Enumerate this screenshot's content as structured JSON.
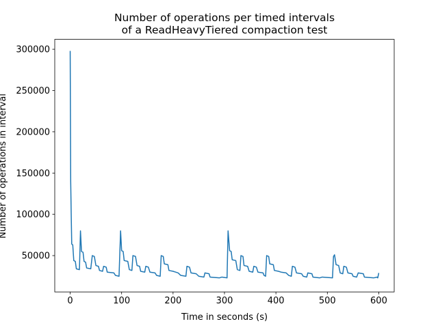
{
  "chart_data": {
    "type": "line",
    "title": [
      "Number of operations per timed intervals",
      "of a ReadHeavyTiered compaction test"
    ],
    "xlabel": "Time in seconds (s)",
    "ylabel": "Number of operations in interval",
    "x": [
      0,
      1,
      2,
      3,
      5,
      7,
      10,
      12,
      18,
      20,
      22,
      25,
      27,
      30,
      32,
      40,
      43,
      47,
      50,
      55,
      57,
      63,
      65,
      70,
      72,
      85,
      88,
      95,
      98,
      100,
      103,
      105,
      112,
      115,
      120,
      122,
      127,
      130,
      135,
      137,
      145,
      147,
      152,
      155,
      165,
      168,
      175,
      177,
      181,
      183,
      190,
      192,
      200,
      205,
      210,
      215,
      225,
      227,
      232,
      235,
      245,
      250,
      260,
      262,
      270,
      272,
      290,
      295,
      305,
      307,
      310,
      313,
      315,
      322,
      325,
      330,
      332,
      336,
      338,
      345,
      348,
      355,
      357,
      362,
      365,
      375,
      377,
      380,
      382,
      386,
      388,
      395,
      397,
      405,
      410,
      420,
      425,
      430,
      432,
      437,
      440,
      450,
      453,
      460,
      462,
      470,
      472,
      485,
      490,
      510,
      512,
      514,
      517,
      522,
      525,
      530,
      532,
      537,
      540,
      548,
      550,
      557,
      560,
      570,
      572,
      590,
      597,
      598,
      600
    ],
    "series": [
      {
        "name": "operations",
        "color": "#1f77b4",
        "values": [
          298000,
          140000,
          100000,
          64000,
          63000,
          44000,
          43000,
          34000,
          33000,
          80000,
          55000,
          54000,
          43000,
          42000,
          35000,
          34000,
          50000,
          49000,
          38000,
          37000,
          32000,
          31000,
          37000,
          36000,
          30000,
          29000,
          26000,
          25000,
          80000,
          56000,
          55000,
          44000,
          43000,
          33000,
          32000,
          50000,
          49000,
          38000,
          37000,
          31000,
          30000,
          37000,
          36000,
          30000,
          29000,
          26000,
          25000,
          50000,
          49000,
          40000,
          39000,
          32000,
          31000,
          30000,
          29000,
          26000,
          25000,
          37000,
          36000,
          29000,
          28000,
          25000,
          24000,
          29000,
          28000,
          24000,
          23000,
          24000,
          23000,
          80000,
          56000,
          55000,
          45000,
          44000,
          33000,
          32000,
          50000,
          49000,
          38000,
          37000,
          31000,
          30000,
          37000,
          36000,
          30000,
          29000,
          26000,
          25000,
          50000,
          49000,
          40000,
          39000,
          32000,
          31000,
          30000,
          29000,
          26000,
          25000,
          37000,
          36000,
          29000,
          28000,
          25000,
          24000,
          29000,
          28000,
          24000,
          23000,
          24000,
          23000,
          49000,
          51000,
          39000,
          38000,
          29000,
          28000,
          37000,
          36000,
          29000,
          28000,
          25000,
          24000,
          29000,
          28000,
          24000,
          23000,
          24000,
          23000,
          29000
        ]
      }
    ],
    "xlim": [
      -30,
      630
    ],
    "ylim": [
      6000,
      312000
    ],
    "xticks": [
      0,
      100,
      200,
      300,
      400,
      500,
      600
    ],
    "yticks": [
      50000,
      100000,
      150000,
      200000,
      250000,
      300000
    ],
    "grid": false
  }
}
